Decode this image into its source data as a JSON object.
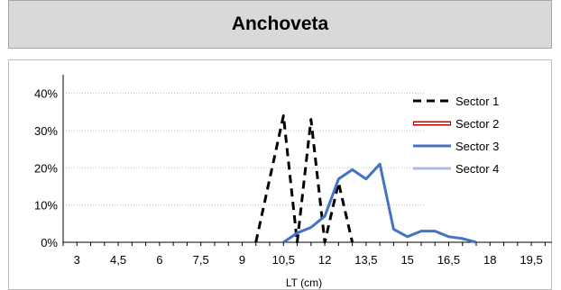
{
  "title": "Anchoveta",
  "chart_data": {
    "type": "line",
    "title": "Anchoveta",
    "xlabel": "LT (cm)",
    "ylabel": "",
    "x_ticks": [
      "3",
      "4,5",
      "6",
      "7,5",
      "9",
      "10,5",
      "12",
      "13,5",
      "15",
      "16,5",
      "18",
      "19,5"
    ],
    "xlim": [
      2.5,
      20.25
    ],
    "ylim": [
      0,
      0.45
    ],
    "y_ticks": [
      "0%",
      "10%",
      "20%",
      "30%",
      "40%"
    ],
    "y_tick_values": [
      0,
      0.1,
      0.2,
      0.3,
      0.4
    ],
    "grid": "horizontal dotted",
    "legend_position": "right",
    "series": [
      {
        "name": "Sector 1",
        "color": "#000000",
        "style": "dashed",
        "points": [
          [
            9.5,
            0
          ],
          [
            10,
            0.17
          ],
          [
            10.5,
            0.34
          ],
          [
            11,
            0
          ],
          [
            11.5,
            0.33
          ],
          [
            12,
            0
          ],
          [
            12.5,
            0.16
          ],
          [
            13,
            0
          ]
        ]
      },
      {
        "name": "Sector 2",
        "color": "#c00000",
        "style": "double",
        "points": []
      },
      {
        "name": "Sector 3",
        "color": "#4472c4",
        "style": "solid",
        "points": [
          [
            10.5,
            0
          ],
          [
            11,
            0.025
          ],
          [
            11.5,
            0.04
          ],
          [
            12,
            0.07
          ],
          [
            12.5,
            0.17
          ],
          [
            13,
            0.195
          ],
          [
            13.5,
            0.17
          ],
          [
            14,
            0.21
          ],
          [
            14.5,
            0.035
          ],
          [
            15,
            0.015
          ],
          [
            15.5,
            0.03
          ],
          [
            16,
            0.03
          ],
          [
            16.5,
            0.015
          ],
          [
            17,
            0.01
          ],
          [
            17.5,
            0
          ]
        ]
      },
      {
        "name": "Sector 4",
        "color": "#a9bfe0",
        "style": "solid",
        "points": []
      }
    ]
  }
}
